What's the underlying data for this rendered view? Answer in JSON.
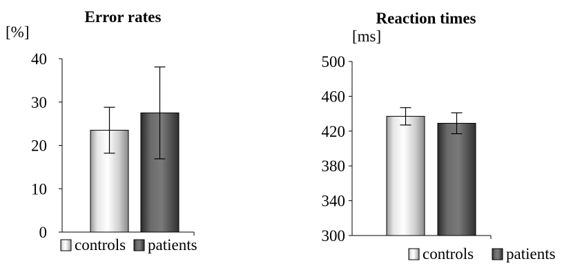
{
  "chart_data": [
    {
      "type": "bar",
      "title": "Error rates",
      "ylabel": "[%]",
      "categories": [
        "controls",
        "patients"
      ],
      "values": [
        23.5,
        27.5
      ],
      "error": [
        5.3,
        10.6
      ],
      "ylim": [
        0,
        40
      ],
      "yticks": [
        0,
        10,
        20,
        30,
        40
      ],
      "legend": "bottom",
      "grid": false,
      "colors": [
        "#d9d9d9",
        "#595959"
      ]
    },
    {
      "type": "bar",
      "title": "Reaction times",
      "ylabel": "[ms]",
      "categories": [
        "controls",
        "patients"
      ],
      "values": [
        437,
        429
      ],
      "error": [
        10,
        12
      ],
      "ylim": [
        300,
        500
      ],
      "yticks": [
        300,
        340,
        380,
        420,
        460,
        500
      ],
      "legend": "bottom",
      "grid": false,
      "colors": [
        "#d9d9d9",
        "#595959"
      ]
    }
  ]
}
